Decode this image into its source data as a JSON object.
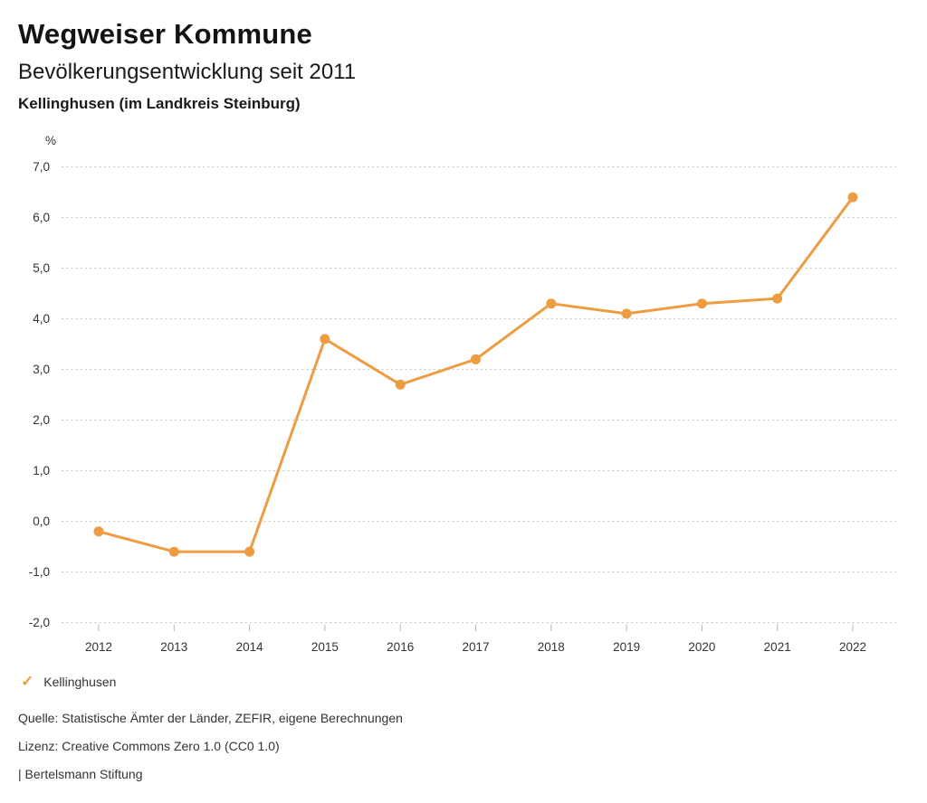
{
  "header": {
    "title": "Wegweiser Kommune",
    "subtitle": "Bevölkerungsentwicklung seit 2011",
    "region": "Kellinghusen (im Landkreis Steinburg)"
  },
  "chart_data": {
    "type": "line",
    "title": "Bevölkerungsentwicklung seit 2011",
    "subtitle": "Kellinghusen (im Landkreis Steinburg)",
    "unit": "%",
    "xlabel": "",
    "ylabel": "%",
    "x": [
      2012,
      2013,
      2014,
      2015,
      2016,
      2017,
      2018,
      2019,
      2020,
      2021,
      2022
    ],
    "x_labels": [
      "2012",
      "2013",
      "2014",
      "2015",
      "2016",
      "2017",
      "2018",
      "2019",
      "2020",
      "2021",
      "2022"
    ],
    "series": [
      {
        "name": "Kellinghusen",
        "values": [
          -0.2,
          -0.6,
          -0.6,
          3.6,
          2.7,
          3.2,
          4.3,
          4.1,
          4.3,
          4.4,
          6.4
        ]
      }
    ],
    "ylim": [
      -2.0,
      7.0
    ],
    "yticks": [
      {
        "value": 7.0,
        "label": "7,0"
      },
      {
        "value": 6.0,
        "label": "6,0"
      },
      {
        "value": 5.0,
        "label": "5,0"
      },
      {
        "value": 4.0,
        "label": "4,0"
      },
      {
        "value": 3.0,
        "label": "3,0"
      },
      {
        "value": 2.0,
        "label": "2,0"
      },
      {
        "value": 1.0,
        "label": "1,0"
      },
      {
        "value": 0.0,
        "label": "0,0"
      },
      {
        "value": -1.0,
        "label": "-1,0"
      },
      {
        "value": -2.0,
        "label": "-2,0"
      }
    ],
    "grid": "horizontal-dotted",
    "legend_position": "bottom-left",
    "line_color": "#ED9C41",
    "marker": "circle"
  },
  "legend": {
    "items": [
      {
        "label": "Kellinghusen",
        "checked": true,
        "color": "#ED9C41",
        "check_icon": "✓"
      }
    ]
  },
  "footer": {
    "source": "Quelle: Statistische Ämter der Länder, ZEFIR, eigene Berechnungen",
    "license": "Lizenz: Creative Commons Zero 1.0 (CC0 1.0)",
    "attribution": "| Bertelsmann Stiftung"
  },
  "colors": {
    "accent": "#ED9C41",
    "grid": "#C9C9C9",
    "text": "#333333",
    "title": "#141414",
    "background": "#FFFFFF"
  }
}
